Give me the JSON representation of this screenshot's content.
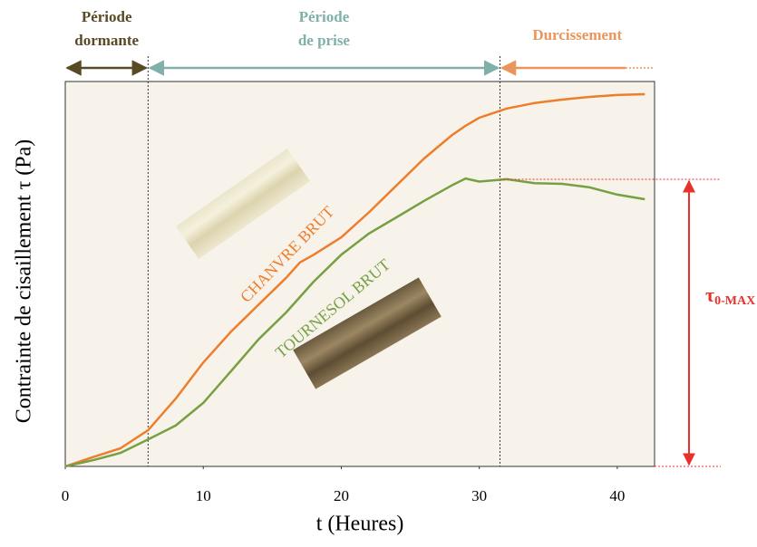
{
  "chart_data": {
    "type": "line",
    "x_label": "t (Heures)",
    "y_label": "Contrainte de cisaillement τ  (Pa)",
    "xlim": [
      0,
      42.7
    ],
    "ylim": [
      0,
      100
    ],
    "xticks": [
      0,
      10,
      20,
      30,
      40
    ],
    "x": [
      0,
      2,
      4,
      6,
      8,
      10,
      12,
      14,
      16,
      17,
      18,
      20,
      22,
      24,
      26,
      28,
      29,
      30,
      32,
      34,
      36,
      38,
      40,
      42
    ],
    "series": [
      {
        "name": "CHANVRE BRUT",
        "color": "#ee7d2c",
        "values": [
          0,
          2.4,
          4.7,
          9.4,
          17.6,
          27,
          35,
          42,
          49,
          53,
          55,
          59.5,
          66,
          73,
          80,
          86,
          88.5,
          90.6,
          93,
          94.4,
          95.3,
          96,
          96.5,
          96.7
        ]
      },
      {
        "name": "TOURNESOL BRUT",
        "color": "#76a041",
        "values": [
          0,
          1.6,
          3.5,
          7,
          10.6,
          16.5,
          24.7,
          33,
          40,
          44,
          48,
          55,
          60.5,
          64.7,
          69,
          73,
          74.8,
          74,
          74.6,
          73.6,
          73.4,
          72.5,
          70.6,
          69.4
        ]
      }
    ],
    "phases": [
      {
        "label": [
          "Période",
          "dormante"
        ],
        "start": 0,
        "end": 6,
        "color": "#594a26"
      },
      {
        "label": [
          "Période",
          "de prise"
        ],
        "start": 6,
        "end": 31.5,
        "color": "#7fb0aa"
      },
      {
        "label": [
          "Durcissement"
        ],
        "start": 31.5,
        "end": 42.7,
        "color": "#e9955c"
      }
    ],
    "annotation": {
      "symbol": "τ",
      "subscript": "0-MAX",
      "value": 74.6,
      "color": "#e8312a"
    }
  }
}
